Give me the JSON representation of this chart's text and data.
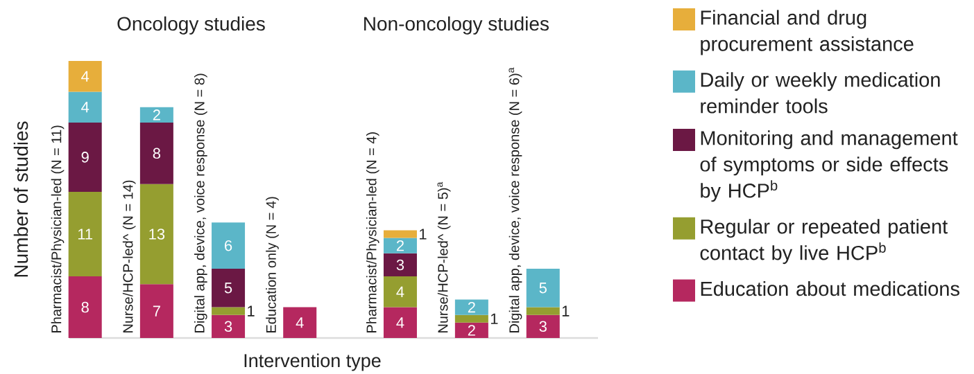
{
  "chart_data": [
    {
      "type": "bar",
      "stacked": true,
      "title": "Oncology studies",
      "ylabel": "Number of studies",
      "xlabel": "Intervention type",
      "legend": "right",
      "data_labels": true,
      "categories": [
        "Pharmacist/Physician-led (N = 11)",
        "Nurse/HCP-led^ (N = 14)",
        "Digital app, device, voice response (N = 8)",
        "Education only (N = 4)"
      ],
      "series": [
        {
          "name": "Education about medications",
          "color": "#b5285f",
          "values": [
            8,
            7,
            3,
            4
          ]
        },
        {
          "name": "Regular or repeated patient contact by live HCP$^{b}$",
          "color": "#959e30",
          "values": [
            11,
            13,
            1,
            null
          ]
        },
        {
          "name": "Monitoring and management of symptoms or side effects by HCP$^{b}$",
          "color": "#6b1844",
          "values": [
            9,
            8,
            5,
            null
          ]
        },
        {
          "name": "Daily or weekly medication reminder tools",
          "color": "#5bb6c8",
          "values": [
            4,
            2,
            6,
            null
          ]
        },
        {
          "name": "Financial and drug procurement assistance",
          "color": "#e7ae3b",
          "values": [
            4,
            null,
            null,
            null
          ]
        }
      ]
    },
    {
      "type": "bar",
      "stacked": true,
      "title": "Non-oncology studies",
      "data_labels": true,
      "categories": [
        "Pharmacist/Physician-led (N = 4)",
        "Nurse/HCP-led^ (N = 5)$^{a}$",
        "Digital app, device, voice response (N = 6)$^{a}$"
      ],
      "series": [
        {
          "color": "#b5285f",
          "values": [
            4,
            2,
            3
          ]
        },
        {
          "color": "#959e30",
          "values": [
            4,
            1,
            1
          ]
        },
        {
          "color": "#6b1844",
          "values": [
            3,
            null,
            null
          ]
        },
        {
          "color": "#5bb6c8",
          "values": [
            2,
            2,
            5
          ]
        },
        {
          "color": "#e7ae3b",
          "values": [
            1,
            null,
            null
          ]
        }
      ]
    }
  ]
}
